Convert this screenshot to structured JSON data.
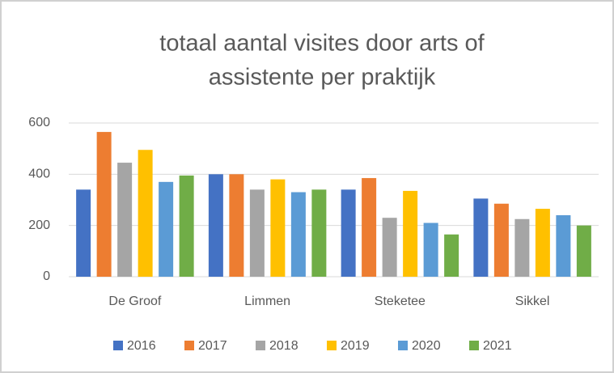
{
  "chart_data": {
    "type": "bar",
    "title": [
      "totaal aantal visites door arts of",
      "assistente per praktijk"
    ],
    "categories": [
      "De Groof",
      "Limmen",
      "Steketee",
      "Sikkel"
    ],
    "series": [
      {
        "name": "2016",
        "color": "#4472c4",
        "values": [
          340,
          400,
          340,
          305
        ]
      },
      {
        "name": "2017",
        "color": "#ed7d31",
        "values": [
          565,
          400,
          385,
          285
        ]
      },
      {
        "name": "2018",
        "color": "#a5a5a5",
        "values": [
          445,
          340,
          230,
          225
        ]
      },
      {
        "name": "2019",
        "color": "#ffc000",
        "values": [
          495,
          380,
          335,
          265
        ]
      },
      {
        "name": "2020",
        "color": "#5b9bd5",
        "values": [
          370,
          330,
          210,
          240
        ]
      },
      {
        "name": "2021",
        "color": "#70ad47",
        "values": [
          395,
          340,
          165,
          200
        ]
      }
    ],
    "ylim": [
      0,
      600
    ],
    "yticks": [
      0,
      200,
      400,
      600
    ],
    "grid": true,
    "legend": "bottom"
  }
}
